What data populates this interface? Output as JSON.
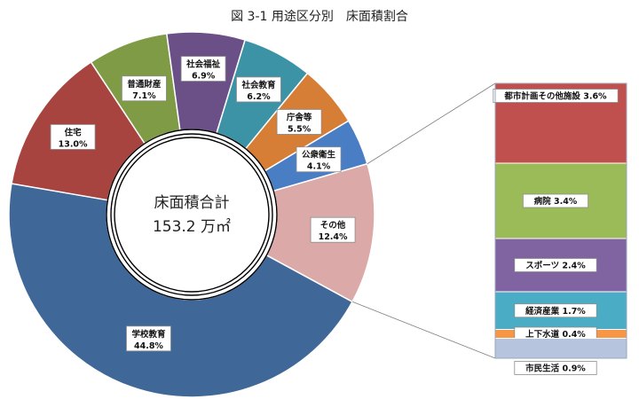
{
  "chart_data": [
    {
      "type": "pie",
      "title": "図 3-1 用途区分別　床面積割合",
      "center_label": "床面積合計",
      "center_value": "153.2 万㎡",
      "slices": [
        {
          "name": "学校教育",
          "value": 44.8,
          "label": "44.8%",
          "color": "#3f6899"
        },
        {
          "name": "住宅",
          "value": 13.0,
          "label": "13.0%",
          "color": "#a84440"
        },
        {
          "name": "普通財産",
          "value": 7.1,
          "label": "7.1%",
          "color": "#7f9b45"
        },
        {
          "name": "社会福祉",
          "value": 6.9,
          "label": "6.9%",
          "color": "#6a5087"
        },
        {
          "name": "社会教育",
          "value": 6.2,
          "label": "6.2%",
          "color": "#3b93a5"
        },
        {
          "name": "庁舎等",
          "value": 5.5,
          "label": "5.5%",
          "color": "#d67d36"
        },
        {
          "name": "公衆衛生",
          "value": 4.1,
          "label": "4.1%",
          "color": "#4a7ec4"
        },
        {
          "name": "その他",
          "value": 12.4,
          "label": "12.4%",
          "color": "#dba9a8"
        }
      ]
    },
    {
      "type": "bar",
      "stacked": true,
      "series": [
        {
          "name": "都市計画その他施設",
          "value": 3.6,
          "label": "都市計画その他施設 3.6%",
          "color": "#c0504d"
        },
        {
          "name": "病院",
          "value": 3.4,
          "label": "病院 3.4%",
          "color": "#9bbb59"
        },
        {
          "name": "スポーツ",
          "value": 2.4,
          "label": "スポーツ 2.4%",
          "color": "#8064a2"
        },
        {
          "name": "経済産業",
          "value": 1.7,
          "label": "経済産業 1.7%",
          "color": "#4bacc6"
        },
        {
          "name": "上下水道",
          "value": 0.4,
          "label": "上下水道 0.4%",
          "color": "#f79646"
        },
        {
          "name": "市民生活",
          "value": 0.9,
          "label": "市民生活 0.9%",
          "color": "#b7c4dd"
        }
      ]
    }
  ]
}
